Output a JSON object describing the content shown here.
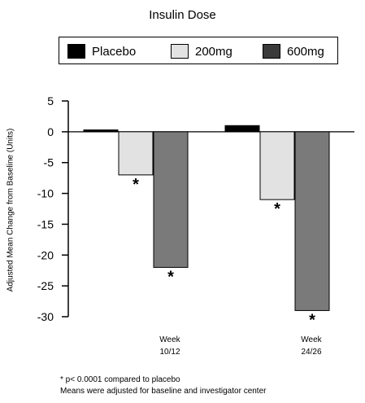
{
  "chart_data": {
    "type": "bar",
    "title": "Insulin Dose",
    "ylabel": "Adjusted Mean Change from Baseline (Units)",
    "xlabel": "",
    "categories": [
      "Week\n10/12",
      "Week\n24/26"
    ],
    "series": [
      {
        "name": "Placebo",
        "color": "#000000",
        "values": [
          0.3,
          1.0
        ]
      },
      {
        "name": "200mg",
        "color": "#e2e2e2",
        "values": [
          -7.0,
          -11.0
        ]
      },
      {
        "name": "600mg",
        "color": "#7a7a7a",
        "values": [
          -22.0,
          -29.0
        ]
      }
    ],
    "significance_marker": "*",
    "significant_series": [
      "200mg",
      "600mg"
    ],
    "ylim": [
      -30,
      5
    ],
    "yticks": [
      5,
      0,
      -5,
      -10,
      -15,
      -20,
      -25,
      -30
    ],
    "grid": false,
    "legend_position": "top"
  },
  "footnotes": {
    "line1": "* p< 0.0001 compared to placebo",
    "line2": "Means were adjusted for baseline and investigator center"
  }
}
